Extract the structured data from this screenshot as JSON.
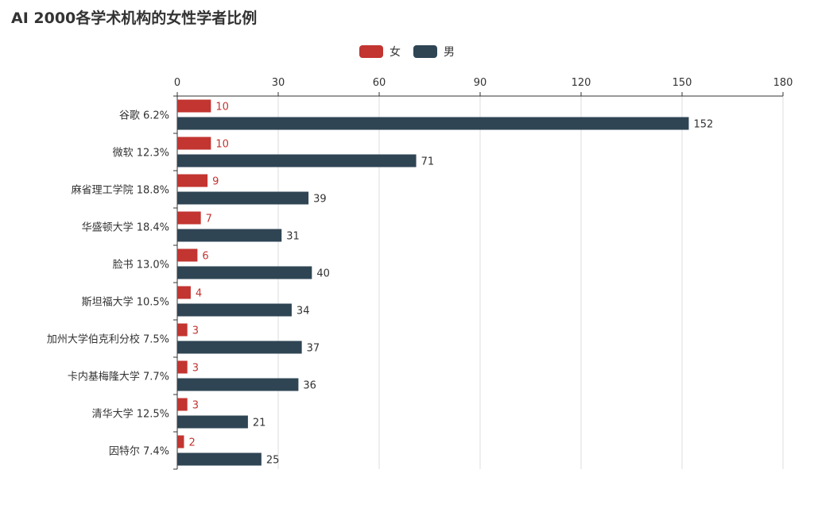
{
  "chart_data": {
    "type": "bar",
    "orientation": "horizontal",
    "title": "AI 2000各学术机构的女性学者比例",
    "categories": [
      "谷歌 6.2%",
      "微软 12.3%",
      "麻省理工学院 18.8%",
      "华盛顿大学 18.4%",
      "脸书 13.0%",
      "斯坦福大学 10.5%",
      "加州大学伯克利分校 7.5%",
      "卡内基梅隆大学 7.7%",
      "清华大学 12.5%",
      "因特尔 7.4%"
    ],
    "series": [
      {
        "name": "女",
        "color": "#c23531",
        "values": [
          10,
          10,
          9,
          7,
          6,
          4,
          3,
          3,
          3,
          2
        ]
      },
      {
        "name": "男",
        "color": "#2f4554",
        "values": [
          152,
          71,
          39,
          31,
          40,
          34,
          37,
          36,
          21,
          25
        ]
      }
    ],
    "xlim": [
      0,
      180
    ],
    "xticks": [
      0,
      30,
      60,
      90,
      120,
      150,
      180
    ],
    "legend_position": "top-center",
    "grid": true
  }
}
